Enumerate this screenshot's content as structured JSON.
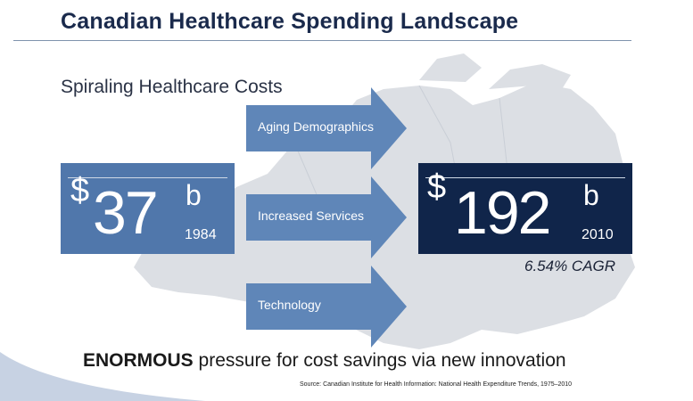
{
  "title": "Canadian Healthcare Spending Landscape",
  "subtitle": "Spiraling Healthcare Costs",
  "left_stat": {
    "currency": "$",
    "amount": "37",
    "unit": "b",
    "year": "1984"
  },
  "right_stat": {
    "currency": "$",
    "amount": "192",
    "unit": "b",
    "year": "2010"
  },
  "arrows": [
    {
      "label": "Aging Demographics"
    },
    {
      "label": "Increased Services"
    },
    {
      "label": "Technology"
    }
  ],
  "cagr": "6.54% CAGR",
  "pressure": {
    "emphasis": "ENORMOUS",
    "rest": " pressure for cost savings via new innovation"
  },
  "source": "Source: Canadian Institute for Health Information: National Health Expenditure Trends, 1975–2010",
  "colors": {
    "navy": "#10254a",
    "blue": "#5077ab",
    "arrow": "#5f86b8",
    "map": "#dadde2"
  }
}
